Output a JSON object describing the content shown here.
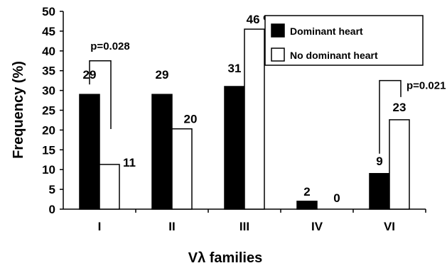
{
  "chart_data": {
    "type": "bar",
    "title": "",
    "xlabel": "Vλ families",
    "ylabel": "Frequency (%)",
    "ylim": [
      0,
      50
    ],
    "yticks": [
      0,
      5,
      10,
      15,
      20,
      25,
      30,
      35,
      40,
      45,
      50
    ],
    "grid": false,
    "legend_position": "top-right",
    "categories": [
      "I",
      "II",
      "III",
      "IV",
      "VI"
    ],
    "series": [
      {
        "name": "Dominant heart",
        "color": "#000000",
        "values": [
          29,
          29,
          31,
          2,
          9
        ],
        "labels": [
          "29",
          "29",
          "31",
          "2",
          "9"
        ]
      },
      {
        "name": "No dominant heart",
        "color": "#ffffff",
        "values": [
          11.3,
          20.3,
          45.5,
          0,
          22.6
        ],
        "labels": [
          "11",
          "20",
          "46 %",
          "0",
          "23"
        ]
      }
    ],
    "annotations": [
      {
        "category_index": 0,
        "text": "p=0.028"
      },
      {
        "category_index": 4,
        "text": "p=0.021"
      }
    ]
  }
}
